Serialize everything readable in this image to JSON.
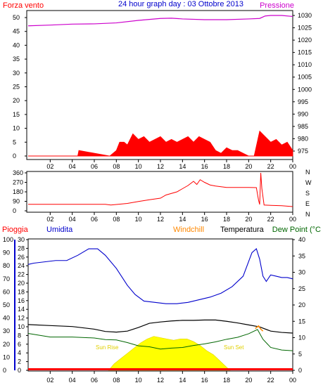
{
  "colors": {
    "wind": "#ff0000",
    "gust_marker": "#00a000",
    "pressure": "#cc00cc",
    "direction": "#ff0000",
    "humidity": "#0000cc",
    "windchill": "#ff8800",
    "temperature": "#000000",
    "dewpoint": "#006600",
    "solar": "#ffff00",
    "rain": "#ff0000",
    "axis": "#000000",
    "grid": "#d9d9d9"
  },
  "header": {
    "title": "24 hour graph day : 03 Ottobre 2013",
    "wind_label": "Forza vento",
    "pressure_label": "Pressione"
  },
  "panel3_labels": {
    "rain": "Pioggia",
    "humidity": "Umidita",
    "windchill": "Windchill",
    "temperature": "Temperatura",
    "dewpoint": "Dew Point (°C",
    "sunrise": "Sun Rise",
    "sunset": "Sun Set"
  },
  "chart_data": [
    {
      "type": "line",
      "title": "24 hour graph day : 03 Ottobre 2013",
      "x_ticks": [
        "02",
        "04",
        "06",
        "08",
        "10",
        "12",
        "14",
        "16",
        "18",
        "20",
        "22",
        "00"
      ],
      "y_left_ticks": [
        0,
        5,
        10,
        15,
        20,
        25,
        30,
        35,
        40,
        45,
        50
      ],
      "y_left_range": [
        0,
        50
      ],
      "y_right_ticks": [
        975,
        980,
        985,
        990,
        995,
        1000,
        1005,
        1010,
        1015,
        1020,
        1025,
        1030
      ],
      "y_right_range": [
        973,
        1032
      ],
      "series": [
        {
          "name": "Forza vento",
          "axis": "left",
          "x": [
            0,
            4.5,
            4.6,
            7.4,
            8.0,
            8.3,
            8.7,
            9.0,
            9.5,
            10.0,
            10.5,
            11.0,
            11.5,
            12.0,
            12.5,
            13.0,
            13.5,
            14.0,
            14.5,
            15.0,
            15.5,
            16.0,
            16.5,
            17.0,
            17.5,
            18.0,
            18.5,
            19.0,
            19.5,
            20.0,
            20.5,
            21.0,
            21.5,
            22.0,
            22.5,
            23.0,
            23.5,
            24.0
          ],
          "values": [
            0,
            0,
            2,
            0,
            2,
            5,
            5,
            4,
            8,
            6,
            7,
            5,
            6,
            7,
            5,
            6,
            5,
            6,
            7,
            5,
            7,
            6,
            5,
            2,
            1,
            3,
            2,
            2,
            1,
            0,
            0,
            9,
            7,
            5,
            6,
            4,
            5,
            2
          ]
        },
        {
          "name": "Pressione",
          "axis": "right",
          "x": [
            0,
            2,
            4,
            6,
            8,
            10,
            12,
            13,
            14,
            16,
            18,
            20,
            21,
            21.5,
            22,
            23,
            24
          ],
          "values": [
            1025.8,
            1026.1,
            1026.5,
            1026.6,
            1027.0,
            1028.0,
            1028.8,
            1028.9,
            1028.6,
            1028.3,
            1028.3,
            1028.6,
            1028.8,
            1029.8,
            1030.0,
            1030.0,
            1029.6
          ]
        }
      ]
    },
    {
      "type": "line",
      "x_ticks": [
        "02",
        "04",
        "06",
        "08",
        "10",
        "12",
        "14",
        "16",
        "18",
        "20",
        "22",
        "00"
      ],
      "y_left_ticks": [
        0,
        90,
        180,
        270,
        360
      ],
      "y_left_range": [
        0,
        360
      ],
      "y_right_labels": [
        "N",
        "W",
        "S",
        "E",
        "N"
      ],
      "series": [
        {
          "name": "Direzione",
          "x": [
            0,
            7.0,
            7.5,
            8.0,
            9.0,
            10.0,
            11.0,
            12.0,
            12.5,
            13.5,
            14.0,
            14.5,
            15.0,
            15.3,
            15.6,
            16.0,
            16.5,
            17.0,
            18.0,
            19.0,
            20.0,
            20.7,
            20.9,
            21.0,
            21.1,
            21.2,
            21.4,
            22.0,
            23.0,
            24.0
          ],
          "values": [
            62,
            62,
            55,
            60,
            70,
            88,
            105,
            120,
            150,
            180,
            210,
            240,
            280,
            250,
            295,
            270,
            245,
            235,
            222,
            222,
            222,
            220,
            100,
            60,
            360,
            210,
            55,
            52,
            48,
            40
          ]
        }
      ]
    },
    {
      "type": "line",
      "x_ticks": [
        "02",
        "04",
        "06",
        "08",
        "10",
        "12",
        "14",
        "16",
        "18",
        "20",
        "22",
        "00"
      ],
      "y_axes": {
        "humidity": {
          "ticks": [
            0,
            10,
            20,
            30,
            40,
            50,
            60,
            70,
            80,
            90,
            100
          ],
          "range": [
            0,
            100
          ]
        },
        "rain": {
          "ticks": [
            0,
            2,
            4,
            6,
            8,
            10,
            12,
            14,
            16,
            18,
            20,
            22,
            24,
            26,
            28,
            30
          ],
          "range": [
            0,
            30
          ]
        },
        "temperature": {
          "ticks": [
            0,
            5,
            10,
            15,
            20,
            25,
            30,
            35,
            40
          ],
          "range": [
            0,
            40
          ]
        }
      },
      "series": [
        {
          "name": "Umidita",
          "axis": "humidity",
          "x": [
            0,
            0.5,
            1.5,
            2.5,
            3.5,
            4.5,
            5.5,
            6.3,
            7.0,
            8.0,
            9.0,
            9.7,
            10.5,
            11.5,
            12.5,
            13.5,
            14.5,
            15.5,
            16.5,
            17.5,
            18.5,
            19.5,
            20.3,
            20.7,
            21.0,
            21.3,
            21.6,
            22.0,
            22.5,
            23.0,
            23.5,
            24.0
          ],
          "values": [
            81,
            82,
            83,
            84,
            84,
            88,
            93,
            93,
            88,
            78,
            65,
            58,
            53,
            52,
            51,
            51,
            52,
            54,
            56,
            59,
            64,
            72,
            90,
            93,
            85,
            72,
            68,
            73,
            72,
            71,
            71,
            70
          ]
        },
        {
          "name": "Temperatura",
          "axis": "temperature",
          "x": [
            0,
            2,
            4,
            6,
            7,
            8,
            9,
            10,
            11,
            12,
            13,
            14,
            15,
            16,
            17,
            18,
            19,
            20,
            21,
            22,
            23,
            24
          ],
          "values": [
            14.0,
            13.7,
            13.4,
            12.6,
            11.9,
            11.7,
            12.0,
            13.1,
            14.4,
            14.8,
            15.1,
            15.3,
            15.3,
            15.4,
            15.4,
            15.0,
            14.5,
            13.9,
            13.3,
            12.0,
            11.6,
            11.4
          ]
        },
        {
          "name": "Windchill",
          "axis": "temperature",
          "x": [
            20.6,
            20.9,
            21.1,
            21.3
          ],
          "values": [
            12.8,
            13.6,
            12.6,
            12.0
          ]
        },
        {
          "name": "Dew Point",
          "axis": "temperature",
          "x": [
            0,
            2,
            4,
            6,
            7,
            8,
            9,
            10,
            11,
            12,
            13,
            14,
            15,
            16,
            17,
            18,
            19,
            20,
            20.8,
            21.3,
            22,
            23,
            24
          ],
          "values": [
            11.3,
            10.2,
            10.2,
            9.9,
            9.4,
            9.3,
            8.5,
            7.5,
            7.2,
            6.5,
            6.8,
            7.0,
            7.6,
            8.1,
            8.7,
            9.5,
            10.1,
            11.2,
            12.5,
            9.5,
            7.0,
            6.2,
            6.0
          ]
        },
        {
          "name": "Solar",
          "axis": "humidity",
          "x": [
            7.3,
            7.8,
            8.4,
            9.0,
            9.6,
            10.2,
            10.8,
            11.4,
            12.0,
            12.6,
            13.2,
            13.8,
            14.4,
            15.0,
            15.6,
            16.2,
            16.8,
            17.3,
            17.8,
            18.3
          ],
          "values": [
            0,
            5,
            9,
            13,
            17,
            21,
            24,
            26,
            25,
            24,
            23,
            24,
            24,
            22,
            19,
            15,
            12,
            8,
            4,
            0
          ]
        },
        {
          "name": "Pioggia",
          "axis": "rain",
          "x": [
            0,
            24
          ],
          "values": [
            0,
            0
          ]
        }
      ]
    }
  ]
}
